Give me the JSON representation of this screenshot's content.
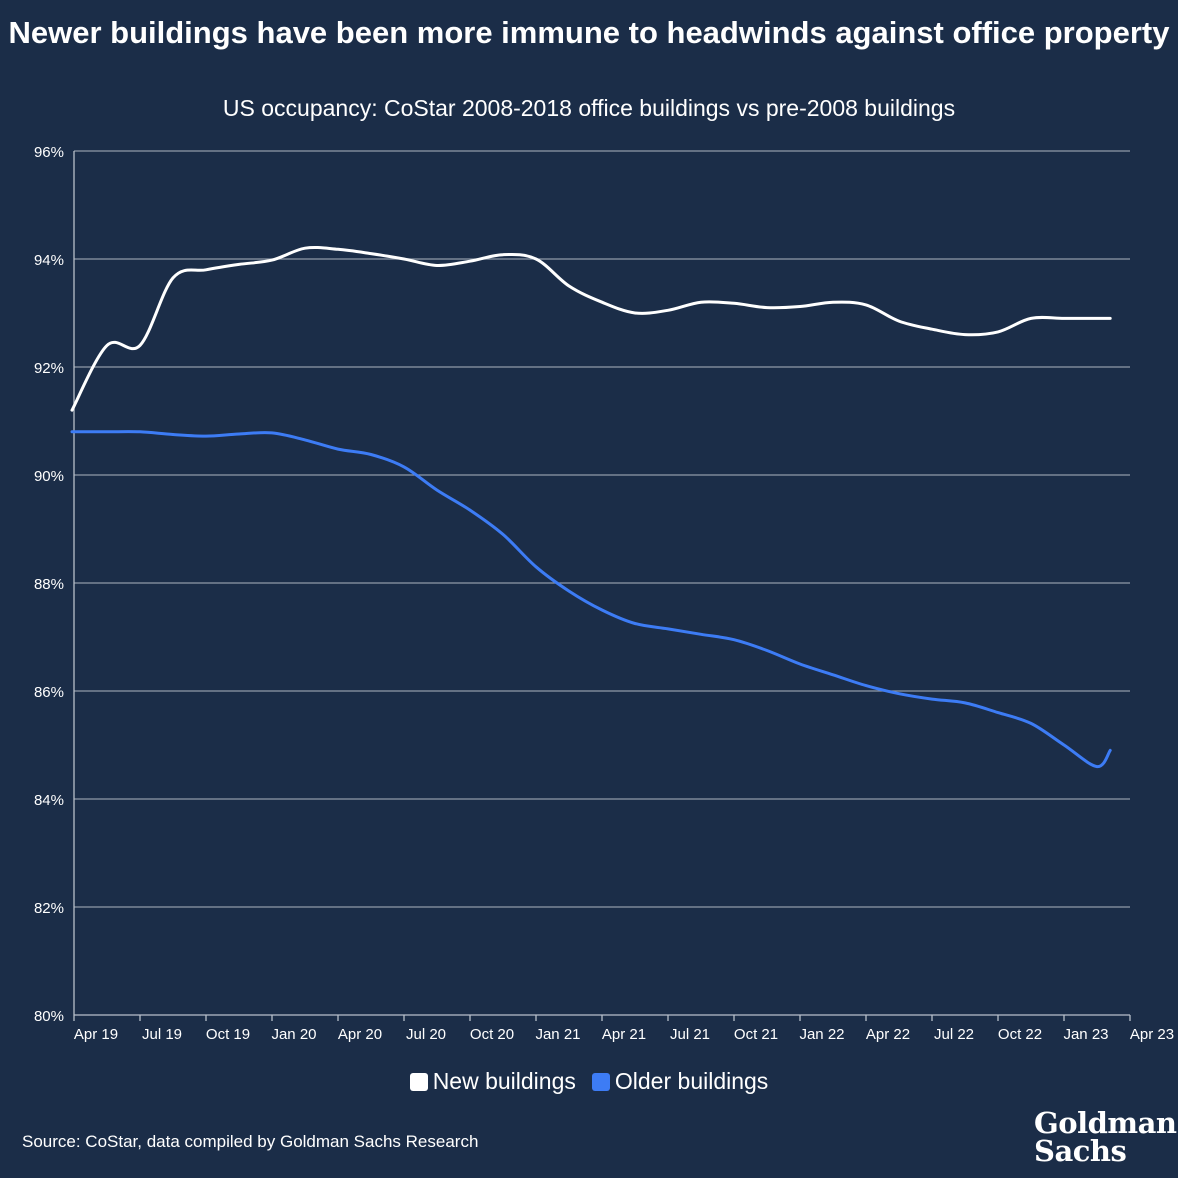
{
  "chart_data": {
    "type": "line",
    "title": "Newer buildings have been more immune to headwinds against office property",
    "subtitle": "US occupancy: CoStar 2008-2018 office buildings vs pre-2008 buildings",
    "xlabel": "",
    "ylabel": "",
    "ylim": [
      80,
      96
    ],
    "yticks": [
      "96%",
      "94%",
      "92%",
      "90%",
      "88%",
      "86%",
      "84%",
      "82%",
      "80%"
    ],
    "ytick_values": [
      96,
      94,
      92,
      90,
      88,
      86,
      84,
      82,
      80
    ],
    "categories": [
      "Apr 19",
      "Jul 19",
      "Oct 19",
      "Jan 20",
      "Apr 20",
      "Jul 20",
      "Oct 20",
      "Jan 21",
      "Apr 21",
      "Jul 21",
      "Oct 21",
      "Jan 22",
      "Apr 22",
      "Jul 22",
      "Oct 22",
      "Jan 23",
      "Apr 23"
    ],
    "x": [
      0,
      1,
      2,
      3,
      4,
      5,
      6,
      7,
      8,
      9,
      10,
      11,
      12,
      13,
      14,
      15,
      16
    ],
    "grid": true,
    "legend_position": "bottom",
    "series": [
      {
        "name": "New buildings",
        "color": "#ffffff",
        "x": [
          -0.03,
          0.5,
          1.0,
          1.5,
          2.0,
          2.5,
          3.0,
          3.5,
          4.0,
          4.5,
          5.0,
          5.5,
          6.0,
          6.5,
          7.0,
          7.5,
          8.0,
          8.5,
          9.0,
          9.5,
          10.0,
          10.5,
          11.0,
          11.5,
          12.0,
          12.5,
          13.0,
          13.5,
          14.0,
          14.5,
          15.0,
          15.5,
          15.7
        ],
        "values": [
          91.2,
          92.4,
          92.4,
          93.65,
          93.8,
          93.9,
          93.98,
          94.2,
          94.18,
          94.1,
          94.0,
          93.88,
          93.96,
          94.08,
          94.0,
          93.5,
          93.2,
          93.0,
          93.05,
          93.2,
          93.18,
          93.1,
          93.12,
          93.2,
          93.15,
          92.85,
          92.7,
          92.6,
          92.65,
          92.9,
          92.9,
          92.9,
          92.9
        ]
      },
      {
        "name": "Older buildings",
        "color": "#3d7cf5",
        "x": [
          -0.03,
          0.5,
          1.0,
          1.5,
          2.0,
          2.5,
          3.0,
          3.5,
          4.0,
          4.5,
          5.0,
          5.5,
          6.0,
          6.5,
          7.0,
          7.5,
          8.0,
          8.5,
          9.0,
          9.5,
          10.0,
          10.5,
          11.0,
          11.5,
          12.0,
          12.5,
          13.0,
          13.5,
          14.0,
          14.5,
          15.0,
          15.5,
          15.7
        ],
        "values": [
          90.8,
          90.8,
          90.8,
          90.75,
          90.72,
          90.76,
          90.78,
          90.65,
          90.48,
          90.38,
          90.15,
          89.72,
          89.35,
          88.9,
          88.3,
          87.85,
          87.5,
          87.25,
          87.15,
          87.05,
          86.95,
          86.75,
          86.5,
          86.3,
          86.1,
          85.95,
          85.85,
          85.78,
          85.6,
          85.4,
          85.0,
          84.6,
          84.9
        ]
      }
    ]
  },
  "legend": {
    "items": [
      {
        "label": "New buildings",
        "color": "#ffffff"
      },
      {
        "label": "Older buildings",
        "color": "#3d7cf5"
      }
    ]
  },
  "source": "Source: CoStar, data compiled by Goldman Sachs Research",
  "logo": {
    "line1": "Goldman",
    "line2": "Sachs"
  }
}
